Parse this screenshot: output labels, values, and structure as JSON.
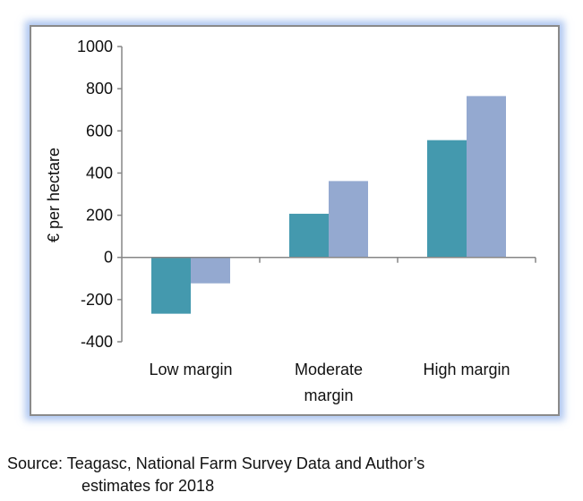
{
  "chart_data": {
    "type": "bar",
    "categories": [
      "Low margin",
      "Moderate margin",
      "High margin"
    ],
    "category_lines": [
      [
        "Low margin"
      ],
      [
        "Moderate",
        "margin"
      ],
      [
        "High margin"
      ]
    ],
    "series": [
      {
        "values": [
          -267,
          207,
          556
        ],
        "color": "#4499ae"
      },
      {
        "values": [
          -123,
          362,
          765
        ],
        "color": "#94a9d0"
      }
    ],
    "xlabel": "",
    "ylabel": "€ per hectare",
    "ylim": [
      -400,
      1000
    ],
    "yticks": [
      -400,
      -200,
      0,
      200,
      400,
      600,
      800,
      1000
    ],
    "grid": false,
    "legend": "none"
  },
  "source": {
    "line1": "Source:  Teagasc, National Farm Survey Data and Author’s",
    "line2": "estimates for 2018"
  }
}
